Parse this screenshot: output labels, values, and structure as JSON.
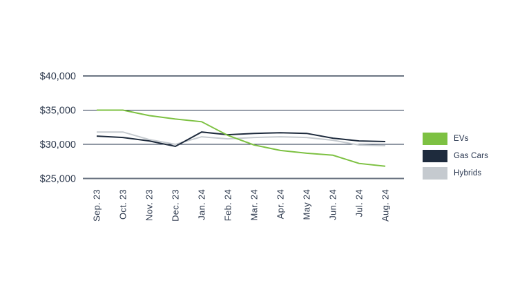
{
  "page": {
    "background": "#ffffff"
  },
  "chart_data": {
    "type": "line",
    "title": "",
    "xlabel": "",
    "ylabel": "",
    "categories": [
      "Sep. 23",
      "Oct. 23",
      "Nov. 23",
      "Dec. 23",
      "Jan. 24",
      "Feb. 24",
      "Mar. 24",
      "Apr. 24",
      "May 24",
      "Jun. 24",
      "Jul. 24",
      "Aug. 24"
    ],
    "series": [
      {
        "name": "EVs",
        "color": "#7dc142",
        "values": [
          35000,
          35000,
          34200,
          33700,
          33300,
          31300,
          29900,
          29100,
          28700,
          28400,
          27200,
          26800
        ]
      },
      {
        "name": "Gas Cars",
        "color": "#1e2b3d",
        "values": [
          31200,
          31000,
          30500,
          29700,
          31800,
          31400,
          31600,
          31700,
          31600,
          30900,
          30500,
          30400
        ]
      },
      {
        "name": "Hybrids",
        "color": "#c5cacf",
        "values": [
          31800,
          31800,
          30700,
          30000,
          31100,
          30800,
          31000,
          31100,
          31000,
          30600,
          29900,
          29800
        ]
      }
    ],
    "y_ticks": [
      {
        "value": 40000,
        "label": "$40,000",
        "line": "outer"
      },
      {
        "value": 35000,
        "label": "$35,000",
        "line": "inner"
      },
      {
        "value": 30000,
        "label": "$30,000",
        "line": "inner"
      },
      {
        "value": 25000,
        "label": "$25,000",
        "line": "outer"
      }
    ],
    "ylim": [
      25000,
      40000
    ],
    "grid": "horizontal",
    "legend_position": "right",
    "colors": {
      "axis_text": "#2e3a4e",
      "grid_outer": "#6b7482",
      "grid_inner": "#22304a",
      "background": "#ffffff"
    }
  }
}
